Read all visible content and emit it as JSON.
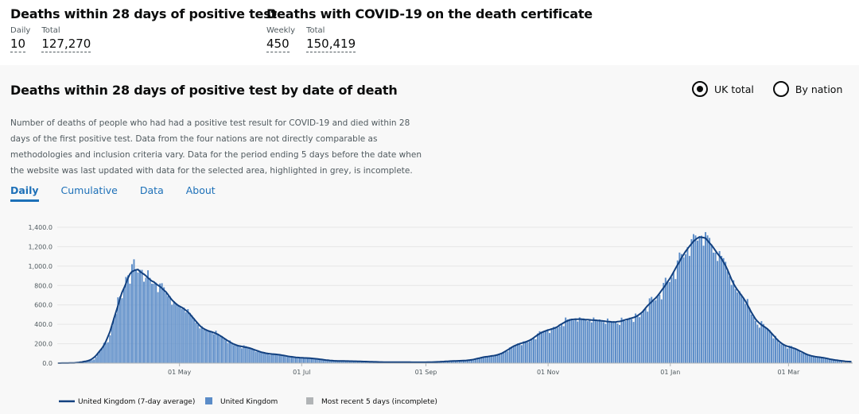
{
  "headline": [
    {
      "title": "Deaths within 28 days of positive test",
      "metrics": [
        {
          "label": "Daily",
          "value": "10"
        },
        {
          "label": "Total",
          "value": "127,270"
        }
      ]
    },
    {
      "title": "Deaths with COVID-19 on the death certificate",
      "metrics": [
        {
          "label": "Weekly",
          "value": "450"
        },
        {
          "label": "Total",
          "value": "150,419"
        }
      ]
    }
  ],
  "card": {
    "title": "Deaths within 28 days of positive test by date of death",
    "radios": [
      {
        "label": "UK total",
        "checked": true
      },
      {
        "label": "By nation",
        "checked": false
      }
    ],
    "description": "Number of deaths of people who had had a positive test result for COVID-19 and died within 28 days of the first positive test. Data from the four nations are not directly comparable as methodologies and inclusion criteria vary. Data for the period ending 5 days before the date when the website was last updated with data for the selected area, highlighted in grey, is incomplete.",
    "tabs": [
      {
        "label": "Daily",
        "active": true
      },
      {
        "label": "Cumulative",
        "active": false
      },
      {
        "label": "Data",
        "active": false
      },
      {
        "label": "About",
        "active": false
      }
    ]
  },
  "colors": {
    "bar": "#5b8cc8",
    "bar_incomplete": "#b1b4b6",
    "line": "#12407f",
    "link": "#1d70b8"
  },
  "chart_data": {
    "type": "bar",
    "x_start": "2020-03-01",
    "x_end": "2021-04-02",
    "ylim": [
      0,
      1400
    ],
    "yticks": [
      0,
      200,
      400,
      600,
      800,
      1000,
      1200,
      1400
    ],
    "xticks": [
      {
        "date": "2020-05-01",
        "label": "01 May"
      },
      {
        "date": "2020-07-01",
        "label": "01 Jul"
      },
      {
        "date": "2020-09-01",
        "label": "01 Sep"
      },
      {
        "date": "2020-11-01",
        "label": "01 Nov"
      },
      {
        "date": "2021-01-01",
        "label": "01 Jan"
      },
      {
        "date": "2021-03-01",
        "label": "01 Mar"
      }
    ],
    "grid": true,
    "legend_position": "bottom-left",
    "legend": [
      {
        "label": "United Kingdom (7-day average)",
        "kind": "line"
      },
      {
        "label": "United Kingdom",
        "kind": "bar"
      },
      {
        "label": "Most recent 5 days (incomplete)",
        "kind": "bar-incomplete"
      }
    ],
    "incomplete_days": 5,
    "series": [
      {
        "name": "United Kingdom",
        "anchors": [
          {
            "date": "2020-03-01",
            "value": 0
          },
          {
            "date": "2020-03-10",
            "value": 2
          },
          {
            "date": "2020-03-18",
            "value": 30
          },
          {
            "date": "2020-03-25",
            "value": 200
          },
          {
            "date": "2020-04-01",
            "value": 650
          },
          {
            "date": "2020-04-05",
            "value": 900
          },
          {
            "date": "2020-04-08",
            "value": 980
          },
          {
            "date": "2020-04-12",
            "value": 940
          },
          {
            "date": "2020-04-20",
            "value": 800
          },
          {
            "date": "2020-05-01",
            "value": 580
          },
          {
            "date": "2020-05-15",
            "value": 330
          },
          {
            "date": "2020-06-01",
            "value": 170
          },
          {
            "date": "2020-06-15",
            "value": 95
          },
          {
            "date": "2020-07-01",
            "value": 55
          },
          {
            "date": "2020-07-20",
            "value": 22
          },
          {
            "date": "2020-08-15",
            "value": 10
          },
          {
            "date": "2020-09-01",
            "value": 9
          },
          {
            "date": "2020-09-20",
            "value": 25
          },
          {
            "date": "2020-10-05",
            "value": 75
          },
          {
            "date": "2020-10-20",
            "value": 210
          },
          {
            "date": "2020-11-01",
            "value": 340
          },
          {
            "date": "2020-11-15",
            "value": 455
          },
          {
            "date": "2020-11-25",
            "value": 440
          },
          {
            "date": "2020-12-05",
            "value": 420
          },
          {
            "date": "2020-12-15",
            "value": 470
          },
          {
            "date": "2020-12-25",
            "value": 660
          },
          {
            "date": "2021-01-01",
            "value": 860
          },
          {
            "date": "2021-01-08",
            "value": 1120
          },
          {
            "date": "2021-01-14",
            "value": 1280
          },
          {
            "date": "2021-01-19",
            "value": 1290
          },
          {
            "date": "2021-01-26",
            "value": 1100
          },
          {
            "date": "2021-02-05",
            "value": 720
          },
          {
            "date": "2021-02-15",
            "value": 400
          },
          {
            "date": "2021-03-01",
            "value": 170
          },
          {
            "date": "2021-03-15",
            "value": 65
          },
          {
            "date": "2021-03-28",
            "value": 25
          },
          {
            "date": "2021-04-02",
            "value": 10
          }
        ],
        "spikes": [
          {
            "date": "2020-04-08",
            "value": 1070
          },
          {
            "date": "2020-04-14",
            "value": 880
          },
          {
            "date": "2020-11-10",
            "value": 470
          },
          {
            "date": "2020-11-24",
            "value": 470
          },
          {
            "date": "2021-01-19",
            "value": 1350
          },
          {
            "date": "2021-01-16",
            "value": 1310
          }
        ]
      }
    ]
  }
}
